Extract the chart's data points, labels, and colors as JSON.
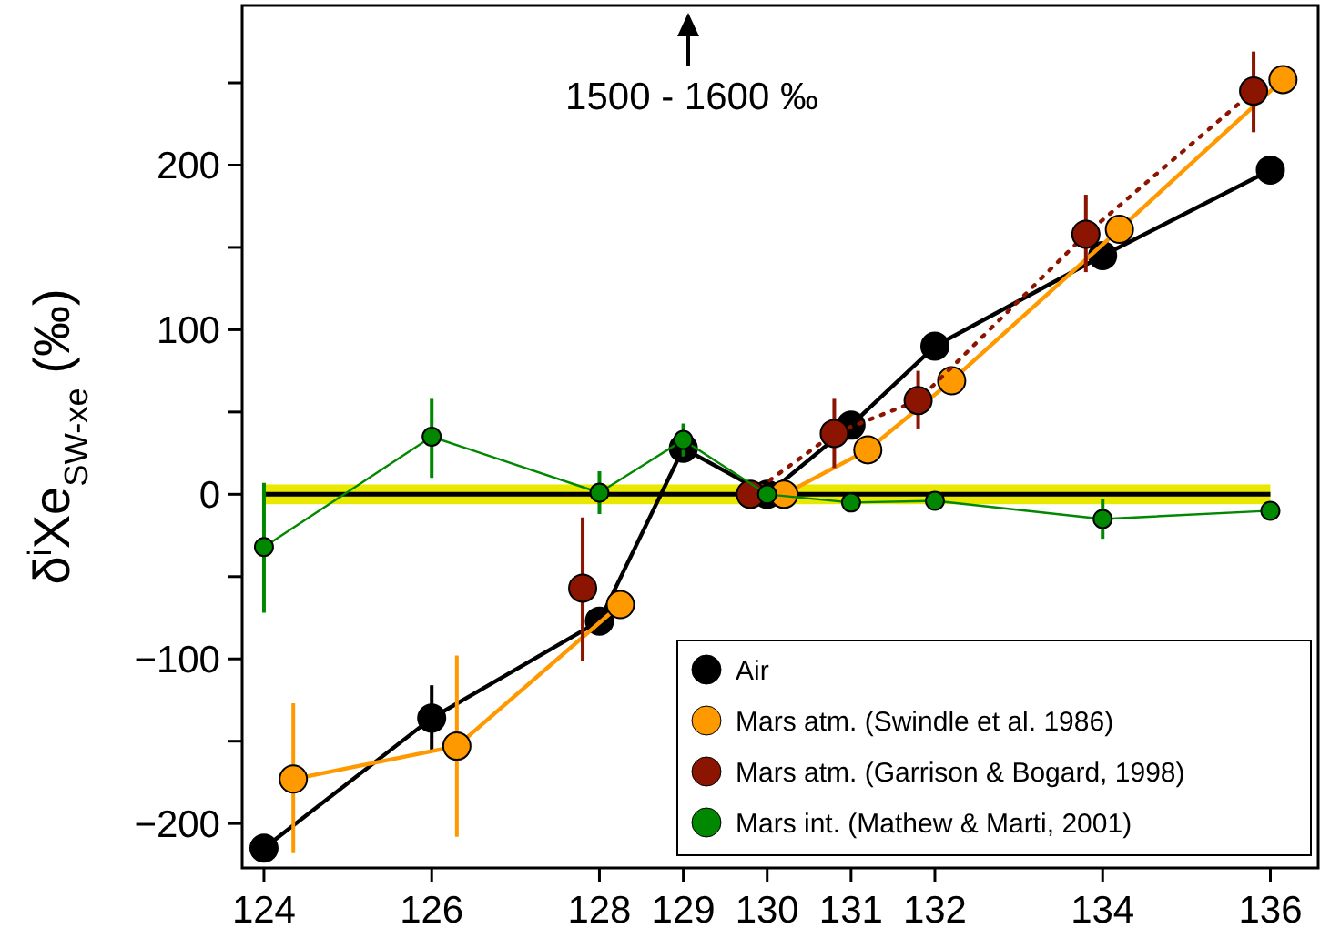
{
  "chart_data": {
    "type": "line",
    "ylabel": "δ$^{i}$Xe$_{SW-xe}$ (‰)",
    "xlim": [
      123.74,
      136.57
    ],
    "ylim": [
      -227,
      297
    ],
    "xticks": [
      124,
      126,
      128,
      129,
      130,
      131,
      132,
      134,
      136
    ],
    "yticks": [
      {
        "value": -200,
        "label": "−200"
      },
      {
        "value": -150,
        "label": null
      },
      {
        "value": -100,
        "label": "−100"
      },
      {
        "value": -50,
        "label": null
      },
      0,
      {
        "value": 50,
        "label": null
      },
      100,
      {
        "value": 150,
        "label": null
      },
      200,
      {
        "value": 250,
        "label": null
      }
    ],
    "marker": "circle",
    "legend": "bottom right",
    "grid": false,
    "series": [
      {
        "name": "Air",
        "color": "#000000",
        "line_style": "solid",
        "x": [
          124,
          126,
          128,
          129,
          130,
          131,
          132,
          134,
          136
        ],
        "values": [
          -215,
          -136,
          -77,
          28,
          0,
          42,
          90,
          145,
          197
        ],
        "errors": [
          null,
          20,
          null,
          null,
          null,
          null,
          null,
          null,
          null
        ]
      },
      {
        "name": "Mars atm. (Swindle et al. 1986)",
        "color": "#ff9900",
        "line_style": "solid",
        "x": [
          124.35,
          126.3,
          128.25,
          129,
          130.2,
          131.2,
          132.2,
          134.2,
          136.15
        ],
        "values": [
          -173,
          -153,
          -67,
          null,
          0,
          27,
          69,
          161,
          252
        ],
        "errors": [
          [
            -218,
            -127
          ],
          [
            -208,
            -98
          ],
          null,
          null,
          null,
          null,
          null,
          null,
          null
        ]
      },
      {
        "name": "Mars atm. (Garrison & Bogard, 1998)",
        "color": "#8b1500",
        "line_style": "dotted",
        "x": [
          127.8,
          129,
          129.8,
          130.8,
          131.8,
          133.8,
          135.8
        ],
        "values": [
          -57,
          null,
          0,
          37,
          57,
          158,
          245
        ],
        "errors": [
          [
            -101,
            -14
          ],
          null,
          null,
          [
            16,
            58
          ],
          [
            40,
            75
          ],
          [
            135,
            182
          ],
          [
            220,
            269
          ]
        ]
      },
      {
        "name": "Mars int. (Mathew & Marti, 2001)",
        "color": "#008800",
        "line_style": "solid",
        "x": [
          124,
          126,
          128,
          129,
          130,
          131,
          132,
          134,
          136
        ],
        "values": [
          -32,
          35,
          1,
          33,
          0,
          -5,
          -4,
          -15,
          -10
        ],
        "errors": [
          [
            -72,
            7
          ],
          [
            10,
            58
          ],
          [
            -12,
            14
          ],
          [
            23,
            43
          ],
          null,
          null,
          null,
          [
            -27,
            -3
          ],
          null
        ]
      }
    ],
    "ref_lines": [
      {
        "axis": "y",
        "value": 0,
        "color": "#000000"
      }
    ],
    "bands": [
      {
        "axis": "y",
        "from": -6,
        "to": 6,
        "color": "#e8e800"
      }
    ],
    "annotations": [
      "1500 - 1600 ‰"
    ]
  }
}
